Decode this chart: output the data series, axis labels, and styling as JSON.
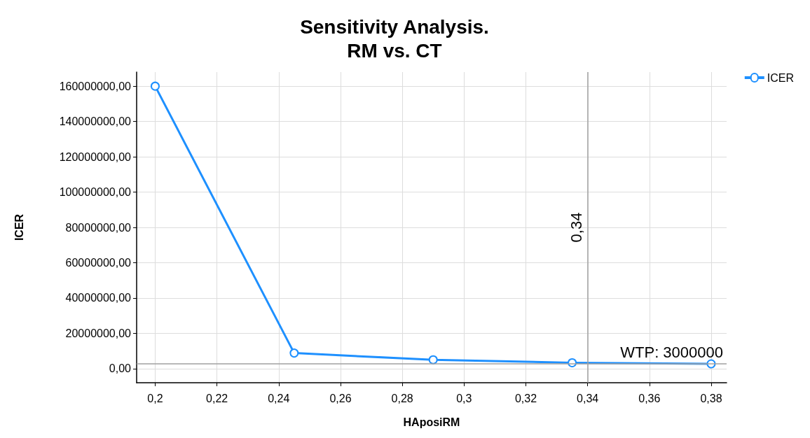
{
  "chart_data": {
    "type": "line",
    "title": "Sensitivity Analysis.\nRM vs. CT",
    "xlabel": "HAposiRM",
    "ylabel": "ICER",
    "x": [
      0.2,
      0.245,
      0.29,
      0.335,
      0.38
    ],
    "series": [
      {
        "name": "ICER",
        "color": "#1e90ff",
        "values": [
          160000000,
          8800000,
          5000000,
          3300000,
          2700000
        ]
      }
    ],
    "xlim": [
      0.194,
      0.385
    ],
    "xticks": [
      {
        "value": 0.2,
        "label": "0,2"
      },
      {
        "value": 0.22,
        "label": "0,22"
      },
      {
        "value": 0.24,
        "label": "0,24"
      },
      {
        "value": 0.26,
        "label": "0,26"
      },
      {
        "value": 0.28,
        "label": "0,28"
      },
      {
        "value": 0.3,
        "label": "0,3"
      },
      {
        "value": 0.32,
        "label": "0,32"
      },
      {
        "value": 0.34,
        "label": "0,34"
      },
      {
        "value": 0.36,
        "label": "0,36"
      },
      {
        "value": 0.38,
        "label": "0,38"
      }
    ],
    "ylim": [
      -8000000,
      168000000
    ],
    "yticks": [
      {
        "value": 0,
        "label": "0,00"
      },
      {
        "value": 20000000,
        "label": "20000000,00"
      },
      {
        "value": 40000000,
        "label": "40000000,00"
      },
      {
        "value": 60000000,
        "label": "60000000,00"
      },
      {
        "value": 80000000,
        "label": "80000000,00"
      },
      {
        "value": 100000000,
        "label": "100000000,00"
      },
      {
        "value": 120000000,
        "label": "120000000,00"
      },
      {
        "value": 140000000,
        "label": "140000000,00"
      },
      {
        "value": 160000000,
        "label": "160000000,00"
      }
    ],
    "ref_lines": [
      {
        "axis": "x",
        "value": 0.34,
        "label": "0,34",
        "color": "#a0a0a0"
      },
      {
        "axis": "y",
        "value": 3000000,
        "label": "WTP: 3000000",
        "color": "#a0a0a0"
      }
    ],
    "grid": true,
    "legend": "top right",
    "marker": "circle",
    "line_style": "solid"
  }
}
